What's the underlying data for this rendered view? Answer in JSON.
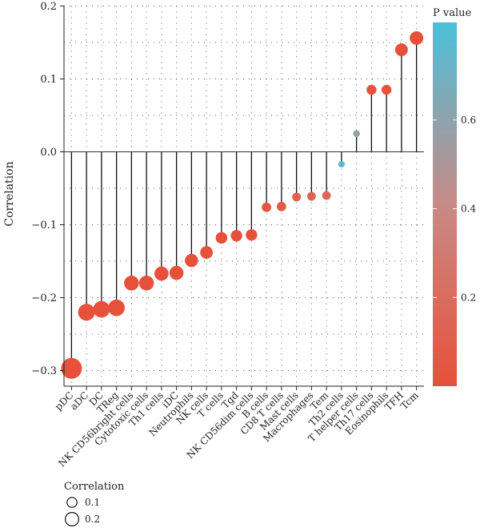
{
  "chart_data": {
    "type": "lollipop",
    "ylabel": "Correlation",
    "ylim": [
      -0.32,
      0.2
    ],
    "yticks": [
      -0.3,
      -0.2,
      -0.1,
      0.0,
      0.1,
      0.2
    ],
    "ytick_labels": [
      "−0.3",
      "−0.2",
      "−0.1",
      "0.0",
      "0.1",
      "0.2"
    ],
    "categories": [
      "pDC",
      "aDC",
      "DC",
      "TReg",
      "NK CD56bright cells",
      "Cytotoxic cells",
      "Th1 cells",
      "iDC",
      "Neutrophils",
      "NK cells",
      "T cells",
      "Tgd",
      "NK CD56dim cells",
      "B cells",
      "CD8 T cells",
      "Mast cells",
      "Macrophages",
      "Tem",
      "Th2 cells",
      "T helper cells",
      "Th17 cells",
      "Eosinophils",
      "TFH",
      "Tcm"
    ],
    "correlation": [
      -0.297,
      -0.22,
      -0.216,
      -0.214,
      -0.18,
      -0.18,
      -0.167,
      -0.166,
      -0.149,
      -0.138,
      -0.118,
      -0.115,
      -0.114,
      -0.076,
      -0.075,
      -0.062,
      -0.061,
      -0.06,
      -0.017,
      0.025,
      0.085,
      0.085,
      0.14,
      0.156
    ],
    "p_value": [
      0.01,
      0.01,
      0.01,
      0.01,
      0.01,
      0.01,
      0.01,
      0.01,
      0.01,
      0.01,
      0.01,
      0.01,
      0.01,
      0.06,
      0.07,
      0.12,
      0.14,
      0.16,
      0.78,
      0.58,
      0.03,
      0.03,
      0.01,
      0.01
    ],
    "color_legend": {
      "title": "P value",
      "ticks": [
        0.2,
        0.4,
        0.6
      ],
      "tick_labels": [
        "0.2",
        "0.4",
        "0.6"
      ],
      "range": [
        0.0,
        0.82
      ],
      "low_color": "#e8503a",
      "high_color": "#4bc0d9"
    },
    "size_legend": {
      "title": "Correlation",
      "labels": [
        "0.1",
        "0.2"
      ],
      "values": [
        0.1,
        0.2
      ]
    },
    "grid": true,
    "legend_position": "right"
  }
}
